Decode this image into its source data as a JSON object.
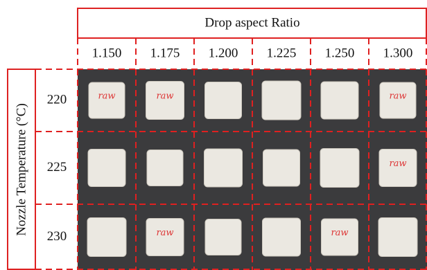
{
  "header": {
    "title": "Drop aspect Ratio",
    "row_title": "Nozzle Temperature (°C)"
  },
  "columns": [
    "1.150",
    "1.175",
    "1.200",
    "1.225",
    "1.250",
    "1.300"
  ],
  "rows": [
    "220",
    "225",
    "230"
  ],
  "notes": [
    {
      "row": 0,
      "col": 0,
      "text": "raw"
    },
    {
      "row": 0,
      "col": 1,
      "text": "raw"
    },
    {
      "row": 0,
      "col": 5,
      "text": "raw"
    },
    {
      "row": 1,
      "col": 5,
      "text": "raw"
    },
    {
      "row": 2,
      "col": 1,
      "text": "raw"
    },
    {
      "row": 2,
      "col": 4,
      "text": "raw"
    }
  ]
}
